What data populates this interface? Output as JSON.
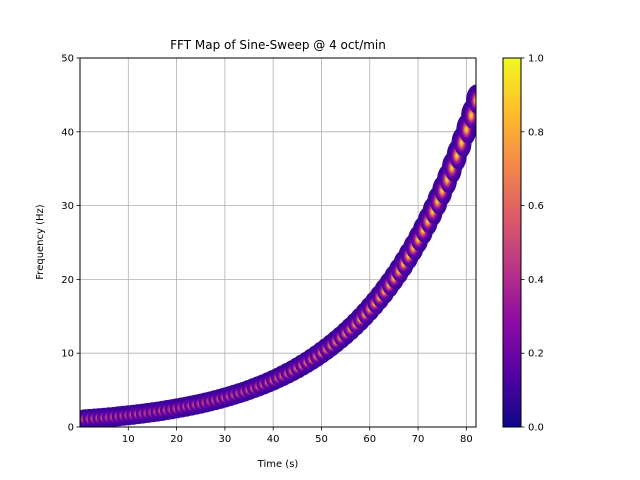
{
  "chart_data": {
    "type": "scatter",
    "title": "FFT Map of Sine-Sweep @ 4 oct/min",
    "xlabel": "Time (s)",
    "ylabel": "Frequency (Hz)",
    "xlim": [
      0,
      82
    ],
    "ylim": [
      0,
      50
    ],
    "xticks": [
      10,
      20,
      30,
      40,
      50,
      60,
      70,
      80
    ],
    "yticks": [
      0,
      10,
      20,
      30,
      40,
      50
    ],
    "grid": true,
    "series": [
      {
        "description": "sweep ridge, f = 1 * 2^(4t/60)",
        "x": [
          1,
          2,
          3,
          4,
          5,
          6,
          7,
          8,
          9,
          10,
          11,
          12,
          13,
          14,
          15,
          16,
          17,
          18,
          19,
          20,
          21,
          22,
          23,
          24,
          25,
          26,
          27,
          28,
          29,
          30,
          31,
          32,
          33,
          34,
          35,
          36,
          37,
          38,
          39,
          40,
          41,
          42,
          43,
          44,
          45,
          46,
          47,
          48,
          49,
          50,
          51,
          52,
          53,
          54,
          55,
          56,
          57,
          58,
          59,
          60,
          61,
          62,
          63,
          64,
          65,
          66,
          67,
          68,
          69,
          70,
          71,
          72,
          73,
          74,
          75,
          76,
          77,
          78,
          79,
          80,
          81,
          82
        ],
        "y": [
          1.05,
          1.1,
          1.15,
          1.2,
          1.26,
          1.32,
          1.38,
          1.45,
          1.52,
          1.59,
          1.66,
          1.74,
          1.82,
          1.91,
          2.0,
          2.09,
          2.19,
          2.3,
          2.41,
          2.52,
          2.64,
          2.76,
          2.89,
          3.03,
          3.17,
          3.32,
          3.48,
          3.64,
          3.81,
          4.0,
          4.18,
          4.38,
          4.59,
          4.8,
          5.03,
          5.27,
          5.52,
          5.78,
          6.05,
          6.34,
          6.64,
          6.96,
          7.29,
          7.63,
          8.0,
          8.38,
          8.77,
          9.19,
          9.62,
          10.08,
          10.56,
          11.06,
          11.59,
          12.13,
          12.7,
          13.3,
          13.92,
          14.58,
          15.27,
          16.0,
          16.75,
          17.54,
          18.38,
          19.25,
          20.16,
          21.11,
          22.11,
          23.16,
          24.25,
          25.4,
          26.61,
          27.86,
          29.18,
          30.56,
          32.0,
          33.5,
          35.1,
          36.76,
          38.5,
          40.3,
          42.22,
          44.22
        ]
      }
    ],
    "colorbar": {
      "colormap": "plasma",
      "range": [
        0.0,
        1.0
      ],
      "ticks": [
        "0.0",
        "0.2",
        "0.4",
        "0.6",
        "0.8",
        "1.0"
      ]
    },
    "colors": {
      "plasma": [
        "#0d0887",
        "#5302a3",
        "#8b0aa5",
        "#b83289",
        "#db5c68",
        "#f48849",
        "#febc2a",
        "#f0f921"
      ]
    }
  }
}
